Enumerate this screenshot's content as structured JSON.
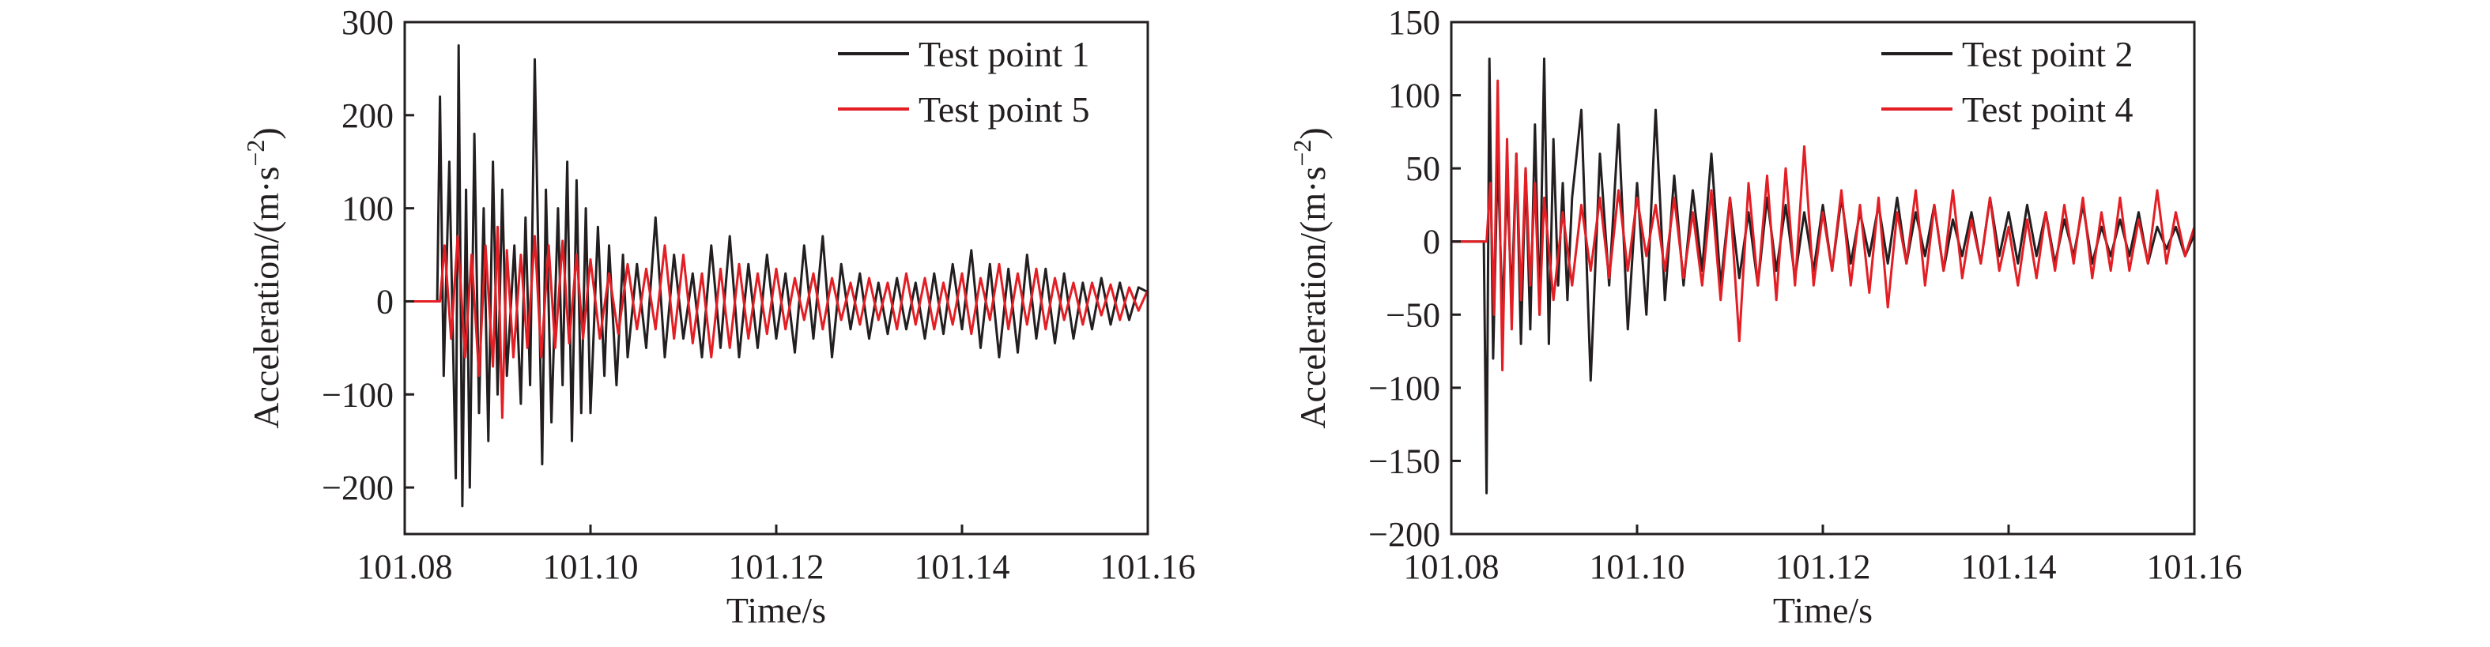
{
  "chart_data": [
    {
      "type": "line",
      "xlabel": "Time/s",
      "ylabel": "Acceleration/(m·s",
      "ylabel_sup": "−2",
      "ylabel_close": ")",
      "xlim": [
        101.08,
        101.16
      ],
      "ylim": [
        -250,
        300
      ],
      "xticks": [
        101.08,
        101.1,
        101.12,
        101.14,
        101.16
      ],
      "xtick_labels": [
        "101.08",
        "101.10",
        "101.12",
        "101.14",
        "101.16"
      ],
      "yticks": [
        -200,
        -100,
        0,
        100,
        200,
        300
      ],
      "ytick_labels": [
        "−200",
        "−100",
        "0",
        "100",
        "200",
        "300"
      ],
      "legend_position": "top-right",
      "grid": false,
      "series": [
        {
          "name": "Test point 1",
          "color": "#231f20",
          "x": [
            101.08,
            101.0835,
            101.0838,
            101.0842,
            101.0848,
            101.0855,
            101.0858,
            101.0862,
            101.0866,
            101.087,
            101.0875,
            101.088,
            101.0885,
            101.089,
            101.0895,
            101.09,
            101.0905,
            101.091,
            101.0918,
            101.0925,
            101.093,
            101.0935,
            101.094,
            101.0948,
            101.0952,
            101.0958,
            101.0965,
            101.097,
            101.0975,
            101.098,
            101.0985,
            101.099,
            101.0995,
            101.1,
            101.1008,
            101.1015,
            101.102,
            101.1028,
            101.1035,
            101.104,
            101.105,
            101.106,
            101.107,
            101.108,
            101.109,
            101.11,
            101.111,
            101.112,
            101.113,
            101.114,
            101.115,
            101.116,
            101.117,
            101.118,
            101.119,
            101.12,
            101.121,
            101.122,
            101.123,
            101.124,
            101.125,
            101.126,
            101.127,
            101.128,
            101.129,
            101.13,
            101.131,
            101.132,
            101.133,
            101.134,
            101.135,
            101.136,
            101.137,
            101.138,
            101.139,
            101.14,
            101.141,
            101.142,
            101.143,
            101.144,
            101.145,
            101.146,
            101.147,
            101.148,
            101.149,
            101.15,
            101.151,
            101.152,
            101.153,
            101.154,
            101.155,
            101.156,
            101.157,
            101.158,
            101.159,
            101.16
          ],
          "y": [
            0,
            0,
            220,
            -80,
            150,
            -190,
            275,
            -220,
            120,
            -200,
            180,
            -120,
            100,
            -150,
            150,
            -100,
            120,
            -80,
            60,
            -110,
            90,
            -90,
            260,
            -175,
            120,
            -130,
            100,
            -90,
            150,
            -150,
            130,
            -120,
            100,
            -120,
            80,
            -80,
            60,
            -90,
            50,
            -60,
            40,
            -50,
            90,
            -60,
            50,
            -40,
            30,
            -60,
            60,
            -50,
            70,
            -60,
            40,
            -50,
            50,
            -40,
            30,
            -55,
            60,
            -40,
            70,
            -60,
            40,
            -30,
            30,
            -40,
            20,
            -35,
            25,
            -30,
            20,
            -40,
            30,
            -35,
            40,
            -30,
            55,
            -50,
            40,
            -60,
            35,
            -55,
            50,
            -40,
            35,
            -45,
            30,
            -40,
            20,
            -30,
            25,
            -25,
            20,
            -20,
            15,
            10
          ]
        },
        {
          "name": "Test point 5",
          "color": "#e31e24",
          "x": [
            101.08,
            101.0838,
            101.0843,
            101.085,
            101.0857,
            101.0865,
            101.0872,
            101.088,
            101.0887,
            101.0895,
            101.09,
            101.0905,
            101.091,
            101.0917,
            101.0925,
            101.0932,
            101.094,
            101.0947,
            101.0955,
            101.0962,
            101.097,
            101.0977,
            101.0985,
            101.0992,
            101.1,
            101.101,
            101.102,
            101.103,
            101.104,
            101.105,
            101.106,
            101.107,
            101.108,
            101.109,
            101.11,
            101.111,
            101.112,
            101.113,
            101.114,
            101.115,
            101.116,
            101.117,
            101.118,
            101.119,
            101.12,
            101.121,
            101.122,
            101.123,
            101.124,
            101.125,
            101.126,
            101.127,
            101.128,
            101.129,
            101.13,
            101.131,
            101.132,
            101.133,
            101.134,
            101.135,
            101.136,
            101.137,
            101.138,
            101.139,
            101.14,
            101.141,
            101.142,
            101.143,
            101.144,
            101.145,
            101.146,
            101.147,
            101.148,
            101.149,
            101.15,
            101.151,
            101.152,
            101.153,
            101.154,
            101.155,
            101.156,
            101.157,
            101.158,
            101.159,
            101.16
          ],
          "y": [
            0,
            0,
            60,
            -40,
            70,
            -60,
            50,
            -80,
            60,
            -70,
            80,
            -125,
            55,
            -60,
            50,
            -50,
            70,
            -60,
            60,
            -50,
            65,
            -45,
            50,
            -40,
            45,
            -40,
            30,
            -35,
            40,
            -30,
            35,
            -30,
            60,
            -40,
            50,
            -45,
            30,
            -60,
            35,
            -50,
            40,
            -40,
            30,
            -35,
            35,
            -30,
            25,
            -20,
            30,
            -30,
            25,
            -20,
            20,
            -25,
            25,
            -20,
            20,
            -30,
            30,
            -25,
            25,
            -30,
            20,
            -25,
            30,
            -35,
            25,
            -20,
            40,
            -30,
            30,
            -25,
            35,
            -30,
            25,
            -20,
            20,
            -25,
            20,
            -15,
            18,
            -20,
            15,
            -10,
            12
          ]
        }
      ]
    },
    {
      "type": "line",
      "xlabel": "Time/s",
      "ylabel": "Acceleration/(m·s",
      "ylabel_sup": "−2",
      "ylabel_close": ")",
      "xlim": [
        101.08,
        101.16
      ],
      "ylim": [
        -200,
        150
      ],
      "xticks": [
        101.08,
        101.1,
        101.12,
        101.14,
        101.16
      ],
      "xtick_labels": [
        "101.08",
        "101.10",
        "101.12",
        "101.14",
        "101.16"
      ],
      "yticks": [
        -200,
        -150,
        -100,
        -50,
        0,
        50,
        100,
        150
      ],
      "ytick_labels": [
        "−200",
        "−150",
        "−100",
        "−50",
        "0",
        "50",
        "100",
        "150"
      ],
      "legend_position": "top-right",
      "grid": false,
      "series": [
        {
          "name": "Test point 2",
          "color": "#231f20",
          "x": [
            101.08,
            101.0835,
            101.0838,
            101.0841,
            101.0845,
            101.085,
            101.0855,
            101.086,
            101.0865,
            101.087,
            101.0875,
            101.088,
            101.0885,
            101.089,
            101.0895,
            101.09,
            101.0905,
            101.091,
            101.0915,
            101.092,
            101.0925,
            101.093,
            101.094,
            101.095,
            101.096,
            101.097,
            101.098,
            101.099,
            101.1,
            101.101,
            101.102,
            101.103,
            101.104,
            101.105,
            101.106,
            101.107,
            101.108,
            101.109,
            101.11,
            101.111,
            101.112,
            101.113,
            101.114,
            101.115,
            101.116,
            101.117,
            101.118,
            101.119,
            101.12,
            101.121,
            101.122,
            101.123,
            101.124,
            101.125,
            101.126,
            101.127,
            101.128,
            101.129,
            101.13,
            101.131,
            101.132,
            101.133,
            101.134,
            101.135,
            101.136,
            101.137,
            101.138,
            101.139,
            101.14,
            101.141,
            101.142,
            101.143,
            101.144,
            101.145,
            101.146,
            101.147,
            101.148,
            101.149,
            101.15,
            101.151,
            101.152,
            101.153,
            101.154,
            101.155,
            101.156,
            101.157,
            101.158,
            101.159,
            101.16
          ],
          "y": [
            0,
            0,
            -172,
            125,
            -80,
            60,
            -50,
            40,
            -40,
            60,
            -70,
            50,
            -60,
            80,
            -50,
            125,
            -70,
            70,
            -30,
            40,
            -40,
            30,
            90,
            -95,
            60,
            -30,
            80,
            -60,
            40,
            -50,
            90,
            -40,
            45,
            -30,
            35,
            -20,
            60,
            -30,
            30,
            -25,
            20,
            -30,
            30,
            -20,
            25,
            -25,
            20,
            -20,
            25,
            -20,
            30,
            -15,
            20,
            -10,
            25,
            -15,
            30,
            -15,
            20,
            -10,
            25,
            -20,
            15,
            -10,
            20,
            -15,
            30,
            -10,
            20,
            -15,
            25,
            -10,
            20,
            -15,
            15,
            -10,
            25,
            -15,
            10,
            -10,
            15,
            -10,
            20,
            -15,
            10,
            -5,
            10,
            -10,
            5
          ]
        },
        {
          "name": "Test point 4",
          "color": "#e31e24",
          "x": [
            101.08,
            101.0838,
            101.0842,
            101.0846,
            101.085,
            101.0855,
            101.086,
            101.0865,
            101.087,
            101.0875,
            101.088,
            101.0885,
            101.089,
            101.0895,
            101.09,
            101.091,
            101.092,
            101.093,
            101.094,
            101.095,
            101.096,
            101.097,
            101.098,
            101.099,
            101.1,
            101.101,
            101.102,
            101.103,
            101.104,
            101.105,
            101.106,
            101.107,
            101.108,
            101.109,
            101.11,
            101.111,
            101.112,
            101.113,
            101.114,
            101.115,
            101.116,
            101.117,
            101.118,
            101.119,
            101.12,
            101.121,
            101.122,
            101.123,
            101.124,
            101.125,
            101.126,
            101.127,
            101.128,
            101.129,
            101.13,
            101.131,
            101.132,
            101.133,
            101.134,
            101.135,
            101.136,
            101.137,
            101.138,
            101.139,
            101.14,
            101.141,
            101.142,
            101.143,
            101.144,
            101.145,
            101.146,
            101.147,
            101.148,
            101.149,
            101.15,
            101.151,
            101.152,
            101.153,
            101.154,
            101.155,
            101.156,
            101.157,
            101.158,
            101.159,
            101.16
          ],
          "y": [
            0,
            0,
            40,
            -50,
            110,
            -88,
            70,
            -60,
            60,
            -40,
            50,
            -30,
            40,
            -50,
            30,
            -40,
            20,
            -30,
            25,
            -20,
            30,
            -25,
            35,
            -20,
            30,
            -10,
            25,
            -20,
            30,
            -25,
            20,
            -30,
            35,
            -40,
            30,
            -68,
            40,
            -30,
            45,
            -40,
            50,
            -30,
            65,
            -30,
            20,
            -20,
            35,
            -30,
            25,
            -35,
            30,
            -45,
            20,
            -15,
            35,
            -30,
            25,
            -20,
            35,
            -25,
            15,
            -15,
            30,
            -20,
            10,
            -30,
            15,
            -25,
            20,
            -20,
            25,
            -15,
            30,
            -25,
            20,
            -20,
            30,
            -20,
            15,
            -15,
            35,
            -15,
            20,
            -10,
            10
          ]
        }
      ]
    }
  ]
}
